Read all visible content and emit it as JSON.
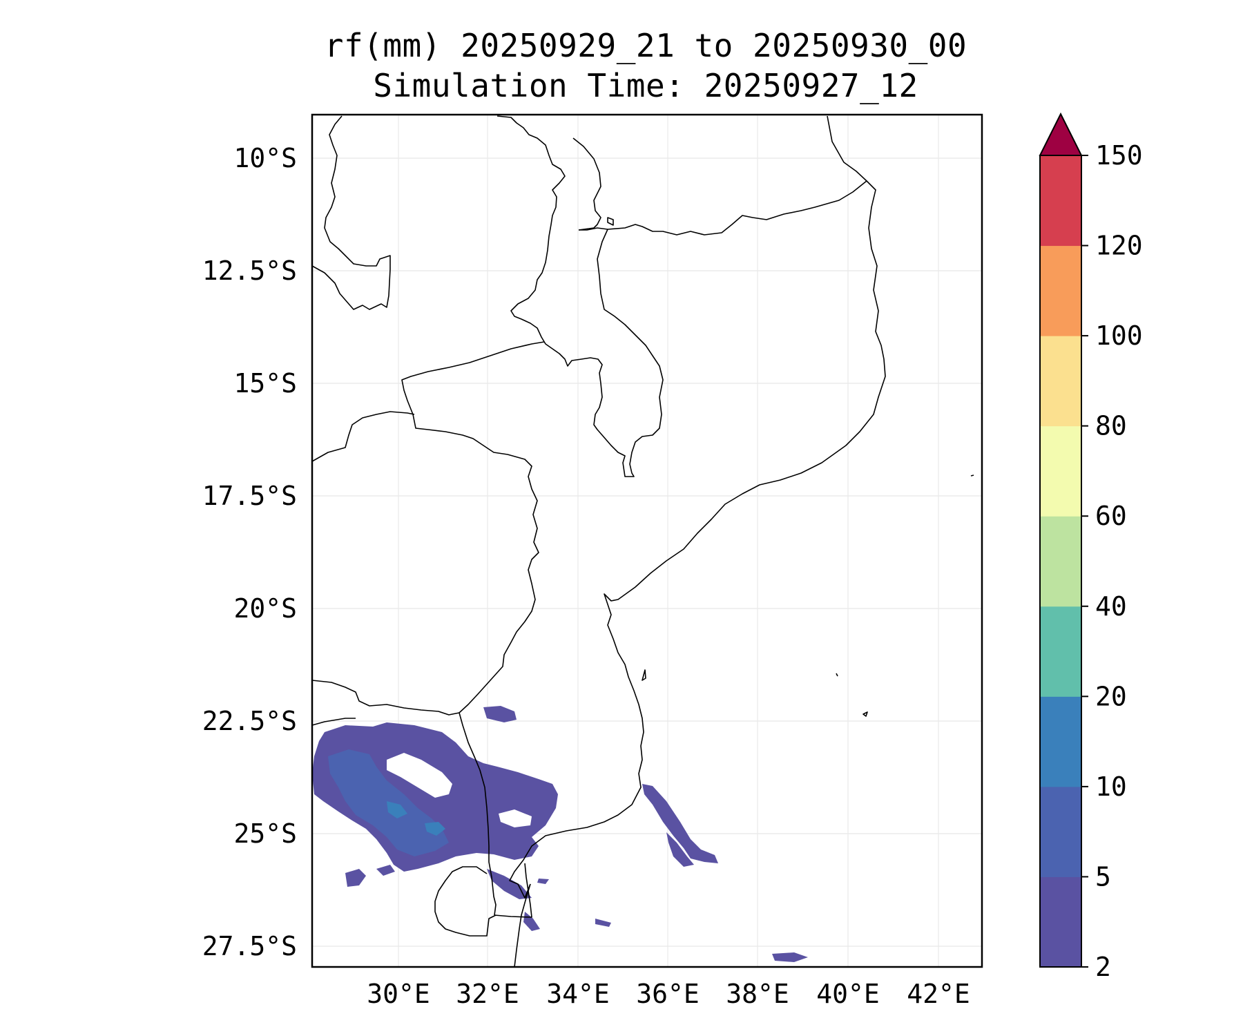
{
  "title": {
    "line1": "rf(mm) 20250929_21 to 20250930_00",
    "line2": "Simulation Time: 20250927_12"
  },
  "map": {
    "lat_labels": [
      "10°S",
      "12.5°S",
      "15°S",
      "17.5°S",
      "20°S",
      "22.5°S",
      "25°S",
      "27.5°S"
    ],
    "lon_labels": [
      "30°E",
      "32°E",
      "34°E",
      "36°E",
      "38°E",
      "40°E",
      "42°E"
    ],
    "gridlines": true
  },
  "colorbar": {
    "levels": [
      "2",
      "5",
      "10",
      "20",
      "40",
      "60",
      "80",
      "100",
      "120",
      "150"
    ],
    "colors": [
      "#5a52a2",
      "#4b63b0",
      "#3a80bb",
      "#61bfab",
      "#bde3a0",
      "#f3fbaf",
      "#fbe08f",
      "#f89c5a",
      "#d63f4f",
      "#9e0142"
    ],
    "extend": "max"
  }
}
